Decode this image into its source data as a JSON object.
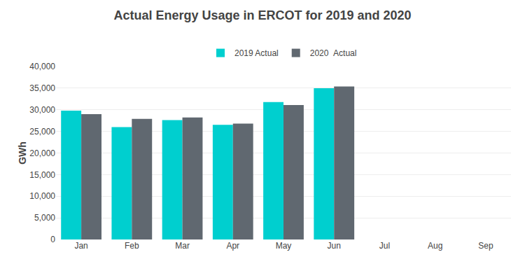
{
  "chart_data": {
    "type": "bar",
    "title": "Actual Energy Usage in ERCOT for 2019 and 2020",
    "ylabel": "GWh",
    "categories": [
      "Jan",
      "Feb",
      "Mar",
      "Apr",
      "May",
      "Jun",
      "Jul",
      "Aug",
      "Sep"
    ],
    "series": [
      {
        "name": "2019 Actual",
        "color": "#00CFCF",
        "values": [
          29800,
          26000,
          27600,
          26500,
          31800,
          35000,
          0,
          0,
          0
        ]
      },
      {
        "name": "2020  Actual",
        "color": "#606870",
        "values": [
          29000,
          27900,
          28200,
          26800,
          31100,
          35400,
          0,
          0,
          0
        ]
      }
    ],
    "ylim": [
      0,
      40000
    ],
    "yticks": [
      0,
      {
        "value": 5000,
        "label": "5,000"
      },
      {
        "value": 10000,
        "label": "10,000"
      },
      {
        "value": 15000,
        "label": "15,000"
      },
      {
        "value": 20000,
        "label": "20,000"
      },
      {
        "value": 25000,
        "label": "25,000"
      },
      {
        "value": 30000,
        "label": "30,000"
      },
      {
        "value": 35000,
        "label": "35,000"
      },
      {
        "value": 40000,
        "label": "40,000"
      }
    ],
    "grid": true,
    "legend": "top"
  }
}
